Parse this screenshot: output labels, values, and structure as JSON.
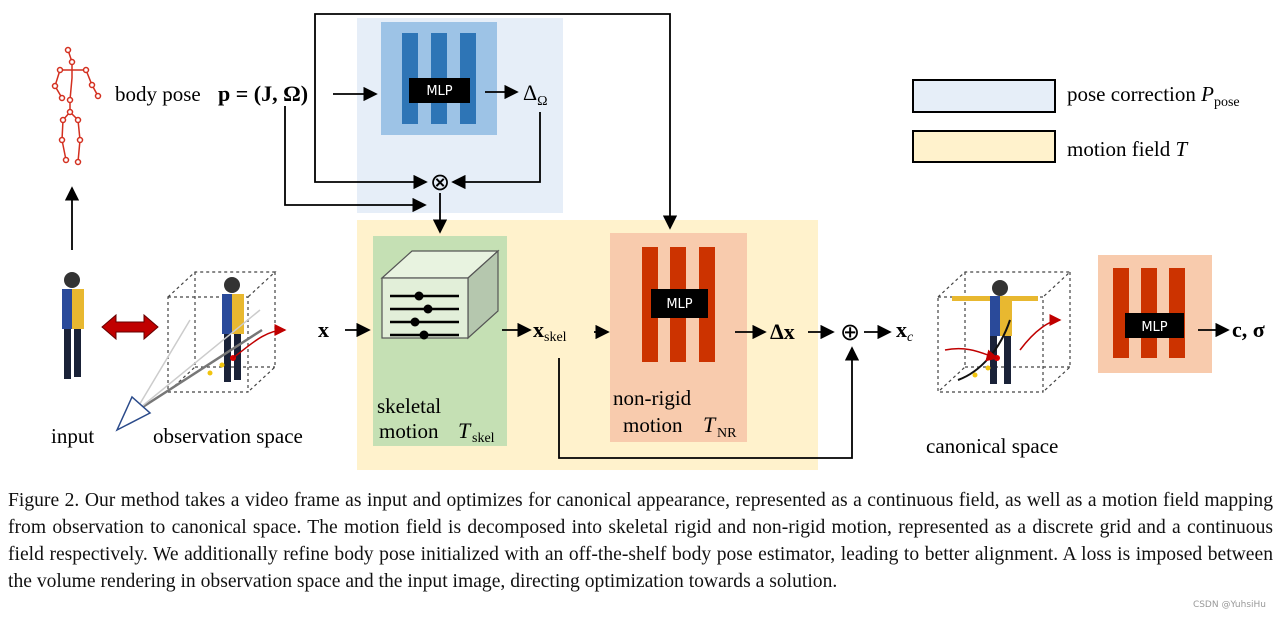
{
  "figure": {
    "labels": {
      "body_pose": "body pose",
      "pose_eq": "p = (J, Ω)",
      "delta_omega": "Δ",
      "delta_omega_sub": "Ω",
      "mlp": "MLP",
      "x": "x",
      "x_skel": "x",
      "x_skel_sub": "skel",
      "delta_x": "Δx",
      "x_c": "x",
      "x_c_sub": "c",
      "output": "c, σ",
      "skeletal_line1": "skeletal",
      "skeletal_line2": "motion",
      "t_skel": "T",
      "t_skel_sub": "skel",
      "nonrigid_line1": "non-rigid",
      "nonrigid_line2": "motion",
      "t_nr": "T",
      "t_nr_sub": "NR",
      "input": "input",
      "observation_space": "observation space",
      "canonical_space": "canonical space",
      "otimes": "⊗",
      "oplus": "⊕"
    },
    "legend": [
      {
        "label": "pose correction ",
        "symbol": "P",
        "sub": "pose",
        "color": "#e6eef8"
      },
      {
        "label": "motion field ",
        "symbol": "T",
        "sub": "",
        "color": "#fff2cc"
      }
    ],
    "colors": {
      "pose_box": "#e6eef8",
      "pose_inner": "#9dc3e6",
      "pose_bars": "#2e75b6",
      "motion_box": "#fff2cc",
      "skeletal_box": "#c5e0b4",
      "nonrigid_box": "#f8cbad",
      "red_bars": "#cc3300",
      "skeleton": "#d32f1f",
      "double_arrow": "#c00000"
    }
  },
  "caption": {
    "text": "Figure 2. Our method takes a video frame as input and optimizes for canonical appearance, represented as a continuous field, as well as a motion field mapping from observation to canonical space. The motion field is decomposed into skeletal rigid and non-rigid motion, represented as a discrete grid and a continuous field respectively. We additionally refine body pose initialized with an off-the-shelf body pose estimator, leading to better alignment. A loss is imposed between the volume rendering in observation space and the input image, directing optimization towards a solution."
  },
  "watermark": "CSDN @YuhsiHu"
}
